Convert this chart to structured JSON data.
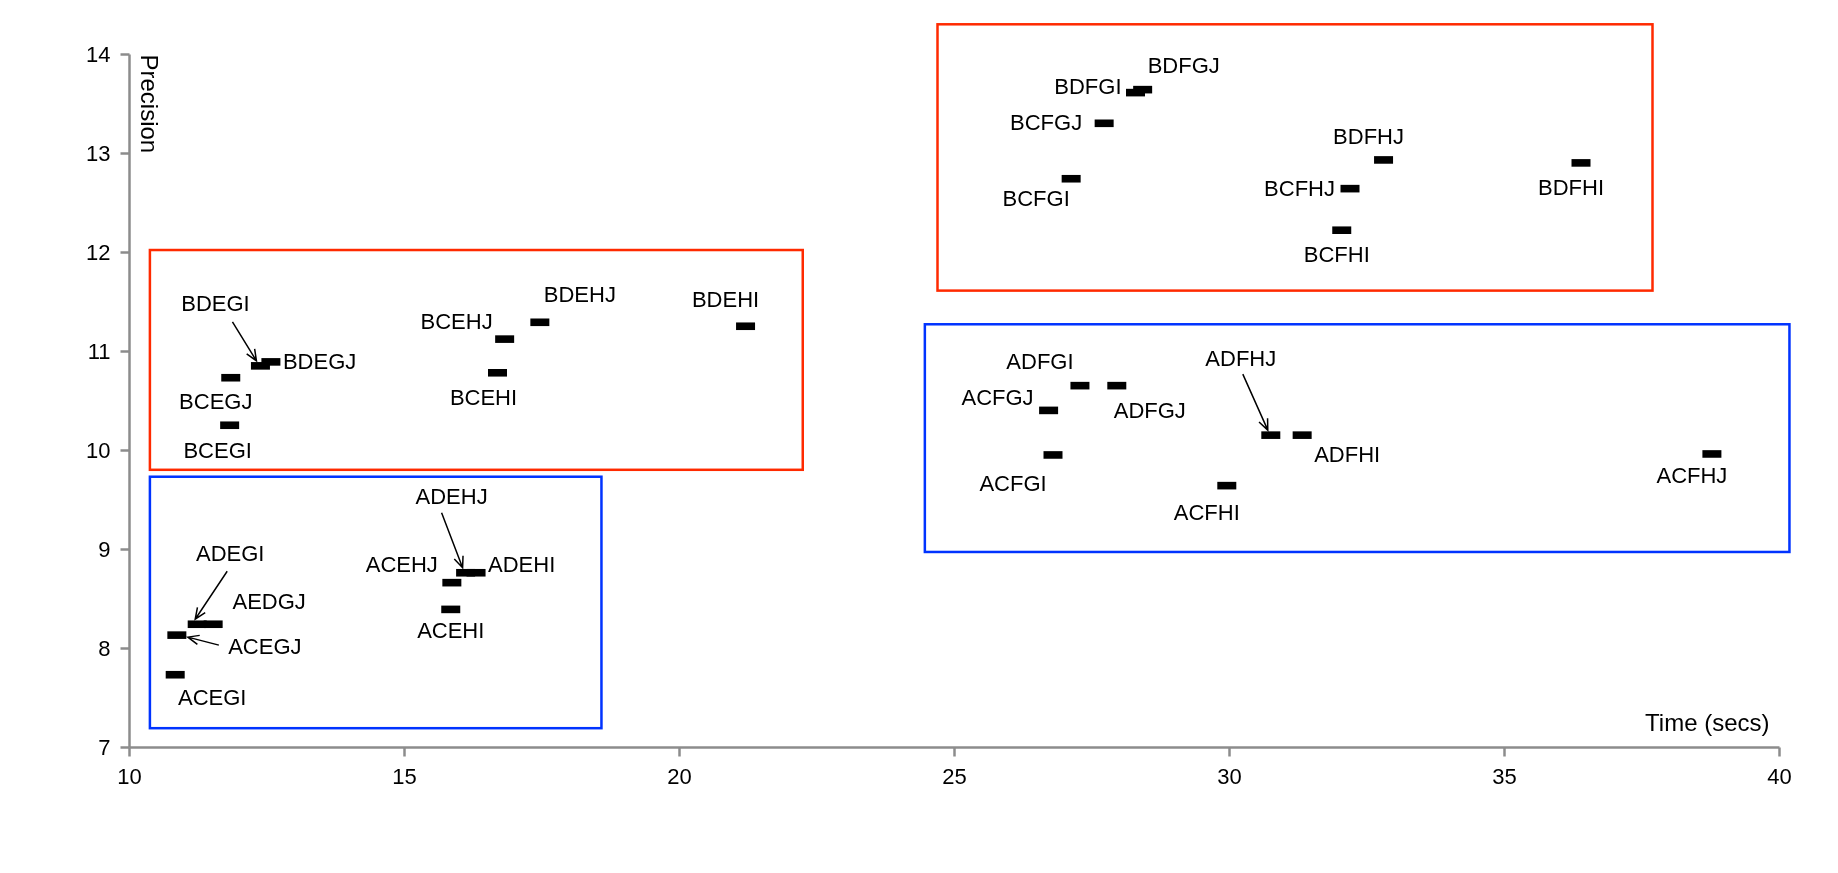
{
  "chart_data": {
    "type": "scatter",
    "xlabel": "Time (secs)",
    "ylabel": "Precision",
    "marker": "square",
    "color": "#000000",
    "xlim": [
      10,
      40
    ],
    "ylim": [
      7,
      14
    ],
    "xticks": [
      10,
      15,
      20,
      25,
      30,
      35,
      40
    ],
    "yticks": [
      7,
      8,
      9,
      10,
      11,
      12,
      13,
      14
    ],
    "x": [
      28.3,
      28.43,
      27.73,
      27.13,
      32.81,
      32.2,
      32.05,
      36.4,
      27.29,
      27.96,
      26.72,
      26.8,
      30.76,
      31.33,
      29.96,
      38.78,
      12.39,
      12.58,
      11.85,
      11.83,
      16.83,
      16.7,
      17.47,
      21.21,
      11.24,
      11.53,
      10.87,
      10.84,
      15.87,
      16.12,
      16.31,
      15.85
    ],
    "values": [
      13.61,
      13.64,
      13.3,
      12.74,
      12.93,
      12.64,
      12.22,
      12.9,
      10.65,
      10.65,
      10.4,
      9.95,
      10.15,
      10.15,
      9.64,
      9.96,
      10.85,
      10.89,
      10.73,
      10.25,
      11.12,
      10.78,
      11.29,
      11.25,
      8.24,
      8.24,
      8.13,
      7.73,
      8.66,
      8.76,
      8.76,
      8.39
    ],
    "annotations": [
      {
        "text": "BDFGI",
        "x": 28.3,
        "y": 13.61
      },
      {
        "text": "BDFGJ",
        "x": 28.43,
        "y": 13.64
      },
      {
        "text": "BCFGJ",
        "x": 27.73,
        "y": 13.3
      },
      {
        "text": "BCFGI",
        "x": 27.13,
        "y": 12.74
      },
      {
        "text": "BDFHJ",
        "x": 32.81,
        "y": 12.93
      },
      {
        "text": "BCFHJ",
        "x": 32.2,
        "y": 12.64
      },
      {
        "text": "BCFHI",
        "x": 32.05,
        "y": 12.22
      },
      {
        "text": "BDFHI",
        "x": 36.4,
        "y": 12.9
      },
      {
        "text": "ADFGI",
        "x": 27.29,
        "y": 10.65
      },
      {
        "text": "ADFGJ",
        "x": 27.96,
        "y": 10.65
      },
      {
        "text": "ACFGJ",
        "x": 26.72,
        "y": 10.4
      },
      {
        "text": "ACFGI",
        "x": 26.8,
        "y": 9.95
      },
      {
        "text": "ADFHJ",
        "x": 30.76,
        "y": 10.15
      },
      {
        "text": "ADFHI",
        "x": 31.33,
        "y": 10.15
      },
      {
        "text": "ACFHI",
        "x": 29.96,
        "y": 9.64
      },
      {
        "text": "ACFHJ",
        "x": 38.78,
        "y": 9.96
      },
      {
        "text": "BDEGI",
        "x": 12.39,
        "y": 10.85
      },
      {
        "text": "BDEGJ",
        "x": 12.58,
        "y": 10.89
      },
      {
        "text": "BCEGJ",
        "x": 11.85,
        "y": 10.73
      },
      {
        "text": "BCEGI",
        "x": 11.83,
        "y": 10.25
      },
      {
        "text": "BCEHJ",
        "x": 16.83,
        "y": 11.12
      },
      {
        "text": "BCEHI",
        "x": 16.7,
        "y": 10.78
      },
      {
        "text": "BDEHJ",
        "x": 17.47,
        "y": 11.29
      },
      {
        "text": "BDEHI",
        "x": 21.21,
        "y": 11.25
      },
      {
        "text": "ADEGI",
        "x": 11.24,
        "y": 8.24
      },
      {
        "text": "AEDGJ",
        "x": 11.53,
        "y": 8.24
      },
      {
        "text": "ACEGJ",
        "x": 10.87,
        "y": 8.13
      },
      {
        "text": "ACEGI",
        "x": 10.84,
        "y": 7.73
      },
      {
        "text": "ACEHJ",
        "x": 15.87,
        "y": 8.66
      },
      {
        "text": "ADEHJ",
        "x": 16.12,
        "y": 8.76
      },
      {
        "text": "ADEHI",
        "x": 16.31,
        "y": 8.76
      },
      {
        "text": "ACEHI",
        "x": 15.85,
        "y": 8.39
      }
    ]
  }
}
